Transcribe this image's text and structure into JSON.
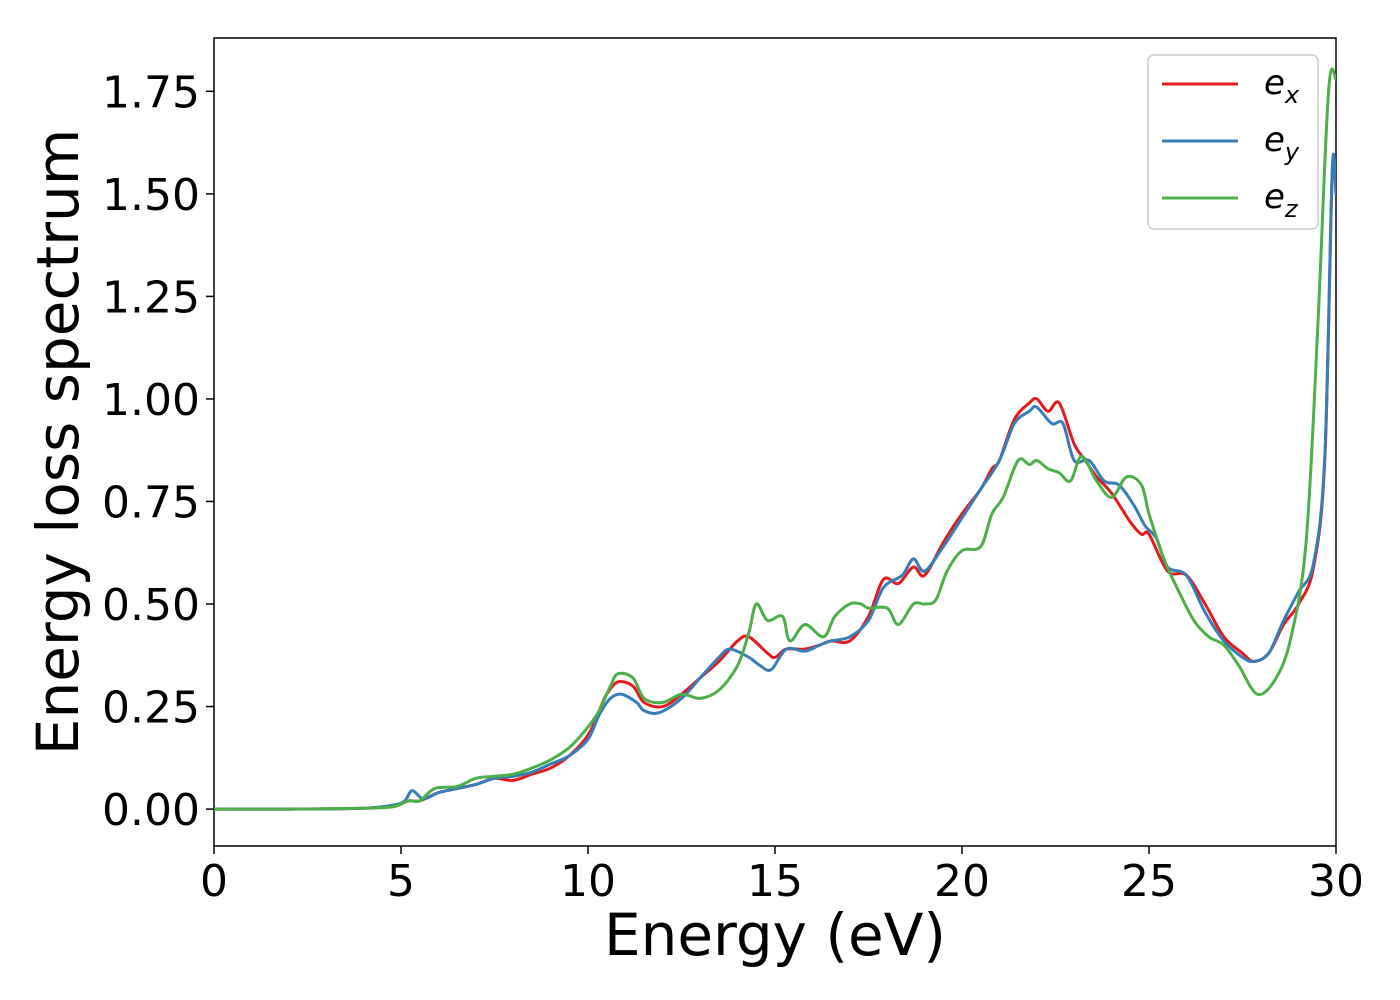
{
  "chart_data": {
    "type": "line",
    "title": "",
    "xlabel": "Energy (eV)",
    "ylabel": "Energy loss spectrum",
    "xlim": [
      0,
      30
    ],
    "ylim": [
      -0.09,
      1.88
    ],
    "xticks": [
      "0",
      "5",
      "10",
      "15",
      "20",
      "25",
      "30"
    ],
    "yticks": [
      "0.00",
      "0.25",
      "0.50",
      "0.75",
      "1.00",
      "1.25",
      "1.50",
      "1.75"
    ],
    "grid": false,
    "legend_position": "top-right",
    "series": [
      {
        "name": "e_x",
        "legend_base": "e",
        "legend_sub": "x",
        "color": "#e41a1c",
        "points": [
          [
            0,
            0.0
          ],
          [
            2,
            0.0
          ],
          [
            4,
            0.002
          ],
          [
            4.8,
            0.008
          ],
          [
            5.2,
            0.02
          ],
          [
            5.5,
            0.02
          ],
          [
            6,
            0.04
          ],
          [
            6.5,
            0.05
          ],
          [
            7,
            0.06
          ],
          [
            7.5,
            0.075
          ],
          [
            8,
            0.07
          ],
          [
            8.5,
            0.085
          ],
          [
            9,
            0.1
          ],
          [
            9.5,
            0.13
          ],
          [
            10,
            0.18
          ],
          [
            10.3,
            0.24
          ],
          [
            10.5,
            0.28
          ],
          [
            10.8,
            0.31
          ],
          [
            11.2,
            0.3
          ],
          [
            11.5,
            0.26
          ],
          [
            12,
            0.25
          ],
          [
            12.5,
            0.28
          ],
          [
            13,
            0.32
          ],
          [
            13.5,
            0.36
          ],
          [
            14,
            0.41
          ],
          [
            14.3,
            0.42
          ],
          [
            14.8,
            0.38
          ],
          [
            15,
            0.37
          ],
          [
            15.3,
            0.39
          ],
          [
            15.8,
            0.39
          ],
          [
            16.2,
            0.4
          ],
          [
            16.5,
            0.41
          ],
          [
            17,
            0.41
          ],
          [
            17.5,
            0.47
          ],
          [
            17.9,
            0.56
          ],
          [
            18.3,
            0.55
          ],
          [
            18.7,
            0.59
          ],
          [
            19,
            0.57
          ],
          [
            19.5,
            0.65
          ],
          [
            20,
            0.72
          ],
          [
            20.5,
            0.78
          ],
          [
            20.8,
            0.83
          ],
          [
            21,
            0.85
          ],
          [
            21.4,
            0.95
          ],
          [
            21.8,
            0.99
          ],
          [
            22,
            1.0
          ],
          [
            22.3,
            0.97
          ],
          [
            22.6,
            0.99
          ],
          [
            23,
            0.89
          ],
          [
            23.3,
            0.85
          ],
          [
            23.6,
            0.81
          ],
          [
            24,
            0.77
          ],
          [
            24.5,
            0.7
          ],
          [
            24.8,
            0.67
          ],
          [
            25,
            0.67
          ],
          [
            25.5,
            0.58
          ],
          [
            26,
            0.57
          ],
          [
            26.5,
            0.5
          ],
          [
            27,
            0.42
          ],
          [
            27.5,
            0.38
          ],
          [
            27.8,
            0.36
          ],
          [
            28.2,
            0.38
          ],
          [
            28.6,
            0.45
          ],
          [
            29,
            0.5
          ],
          [
            29.4,
            0.59
          ],
          [
            29.7,
            0.85
          ],
          [
            29.9,
            1.55
          ],
          [
            30,
            1.5
          ]
        ]
      },
      {
        "name": "e_y",
        "legend_base": "e",
        "legend_sub": "y",
        "color": "#377eb8",
        "points": [
          [
            0,
            0.0
          ],
          [
            2,
            0.0
          ],
          [
            4,
            0.002
          ],
          [
            4.8,
            0.01
          ],
          [
            5.1,
            0.02
          ],
          [
            5.3,
            0.045
          ],
          [
            5.6,
            0.025
          ],
          [
            6,
            0.04
          ],
          [
            6.5,
            0.05
          ],
          [
            7,
            0.06
          ],
          [
            7.5,
            0.075
          ],
          [
            8,
            0.08
          ],
          [
            8.5,
            0.09
          ],
          [
            9,
            0.11
          ],
          [
            9.5,
            0.13
          ],
          [
            10,
            0.17
          ],
          [
            10.3,
            0.23
          ],
          [
            10.6,
            0.27
          ],
          [
            10.9,
            0.28
          ],
          [
            11.3,
            0.26
          ],
          [
            11.5,
            0.24
          ],
          [
            11.9,
            0.235
          ],
          [
            12.5,
            0.27
          ],
          [
            13,
            0.32
          ],
          [
            13.5,
            0.37
          ],
          [
            13.8,
            0.39
          ],
          [
            14.3,
            0.37
          ],
          [
            14.6,
            0.35
          ],
          [
            14.9,
            0.34
          ],
          [
            15.3,
            0.39
          ],
          [
            15.8,
            0.385
          ],
          [
            16.2,
            0.4
          ],
          [
            16.5,
            0.41
          ],
          [
            17,
            0.42
          ],
          [
            17.5,
            0.46
          ],
          [
            17.9,
            0.54
          ],
          [
            18.4,
            0.57
          ],
          [
            18.7,
            0.61
          ],
          [
            19,
            0.58
          ],
          [
            19.5,
            0.64
          ],
          [
            20,
            0.71
          ],
          [
            20.5,
            0.78
          ],
          [
            21,
            0.85
          ],
          [
            21.4,
            0.94
          ],
          [
            21.8,
            0.97
          ],
          [
            22,
            0.98
          ],
          [
            22.4,
            0.94
          ],
          [
            22.7,
            0.94
          ],
          [
            23,
            0.85
          ],
          [
            23.4,
            0.85
          ],
          [
            23.8,
            0.8
          ],
          [
            24.2,
            0.79
          ],
          [
            24.6,
            0.74
          ],
          [
            24.9,
            0.69
          ],
          [
            25.2,
            0.66
          ],
          [
            25.5,
            0.59
          ],
          [
            26,
            0.57
          ],
          [
            26.5,
            0.48
          ],
          [
            27,
            0.41
          ],
          [
            27.5,
            0.37
          ],
          [
            27.8,
            0.36
          ],
          [
            28.2,
            0.38
          ],
          [
            28.6,
            0.46
          ],
          [
            29,
            0.53
          ],
          [
            29.4,
            0.6
          ],
          [
            29.7,
            0.86
          ],
          [
            29.9,
            1.56
          ],
          [
            30,
            1.5
          ]
        ]
      },
      {
        "name": "e_z",
        "legend_base": "e",
        "legend_sub": "z",
        "color": "#4daf4a",
        "points": [
          [
            0,
            0.0
          ],
          [
            2,
            0.0
          ],
          [
            4,
            0.002
          ],
          [
            4.8,
            0.006
          ],
          [
            5.2,
            0.02
          ],
          [
            5.5,
            0.02
          ],
          [
            5.9,
            0.05
          ],
          [
            6.5,
            0.055
          ],
          [
            7,
            0.075
          ],
          [
            7.5,
            0.08
          ],
          [
            8,
            0.085
          ],
          [
            8.5,
            0.1
          ],
          [
            9,
            0.12
          ],
          [
            9.5,
            0.15
          ],
          [
            10,
            0.2
          ],
          [
            10.3,
            0.24
          ],
          [
            10.6,
            0.3
          ],
          [
            10.8,
            0.33
          ],
          [
            11.2,
            0.32
          ],
          [
            11.5,
            0.27
          ],
          [
            12,
            0.26
          ],
          [
            12.5,
            0.28
          ],
          [
            13,
            0.27
          ],
          [
            13.5,
            0.29
          ],
          [
            14,
            0.35
          ],
          [
            14.3,
            0.43
          ],
          [
            14.5,
            0.5
          ],
          [
            14.8,
            0.46
          ],
          [
            15.2,
            0.47
          ],
          [
            15.4,
            0.41
          ],
          [
            15.8,
            0.45
          ],
          [
            16.3,
            0.42
          ],
          [
            16.6,
            0.47
          ],
          [
            17,
            0.5
          ],
          [
            17.3,
            0.5
          ],
          [
            17.5,
            0.49
          ],
          [
            18,
            0.49
          ],
          [
            18.3,
            0.45
          ],
          [
            18.7,
            0.5
          ],
          [
            19,
            0.5
          ],
          [
            19.3,
            0.51
          ],
          [
            19.6,
            0.58
          ],
          [
            20,
            0.63
          ],
          [
            20.5,
            0.64
          ],
          [
            20.8,
            0.72
          ],
          [
            21.1,
            0.76
          ],
          [
            21.5,
            0.85
          ],
          [
            21.8,
            0.84
          ],
          [
            22,
            0.85
          ],
          [
            22.3,
            0.83
          ],
          [
            22.6,
            0.82
          ],
          [
            22.9,
            0.8
          ],
          [
            23.2,
            0.86
          ],
          [
            23.6,
            0.8
          ],
          [
            24,
            0.76
          ],
          [
            24.4,
            0.81
          ],
          [
            24.8,
            0.79
          ],
          [
            25,
            0.72
          ],
          [
            25.4,
            0.61
          ],
          [
            25.8,
            0.53
          ],
          [
            26.2,
            0.46
          ],
          [
            26.6,
            0.42
          ],
          [
            27,
            0.4
          ],
          [
            27.4,
            0.35
          ],
          [
            27.9,
            0.28
          ],
          [
            28.4,
            0.32
          ],
          [
            28.8,
            0.42
          ],
          [
            29.2,
            0.65
          ],
          [
            29.5,
            1.15
          ],
          [
            29.8,
            1.75
          ],
          [
            30,
            1.78
          ]
        ]
      }
    ]
  }
}
